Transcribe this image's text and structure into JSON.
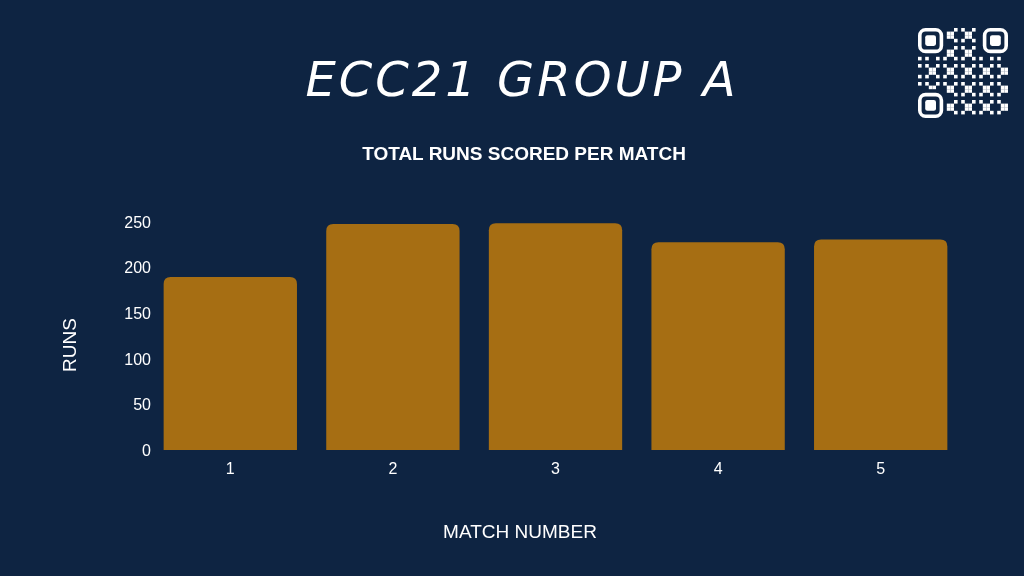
{
  "chart_data": {
    "type": "bar",
    "title": "ECC21 GROUP A",
    "subtitle": "TOTAL RUNS SCORED PER MATCH",
    "xlabel": "MATCH NUMBER",
    "ylabel": "RUNS",
    "categories": [
      "1",
      "2",
      "3",
      "4",
      "5"
    ],
    "values": [
      190,
      248,
      249,
      228,
      231
    ],
    "color": "#a66e13",
    "ylim": [
      0,
      250
    ],
    "yticks": [
      0,
      50,
      100,
      150,
      200,
      250
    ]
  }
}
